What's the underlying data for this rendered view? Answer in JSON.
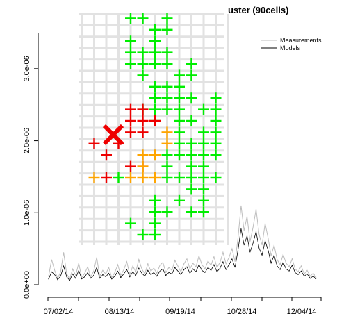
{
  "chart_data": {
    "type": "line",
    "title": "uster (90cells)",
    "xlabel": "",
    "ylabel": "",
    "x_tick_labels": [
      "07/02/14",
      "08/13/14",
      "09/19/14",
      "10/28/14",
      "12/04/14"
    ],
    "y_tick_labels": [
      "0.0e+00",
      "1.0e-06",
      "2.0e-06",
      "3.0e-06"
    ],
    "y_ticks": [
      0,
      1e-06,
      2e-06,
      3e-06
    ],
    "ylim": [
      0,
      3.5e-06
    ],
    "legend": {
      "position": "top-right",
      "entries": [
        "Measurements",
        "Models"
      ]
    },
    "series": [
      {
        "name": "Measurements",
        "color": "#bdbdbd",
        "values": [
          1.2e-07,
          3.5e-07,
          2e-07,
          9e-08,
          1.8e-07,
          4.5e-07,
          1.5e-07,
          8e-08,
          2.2e-07,
          1.3e-07,
          3e-07,
          1e-07,
          1.6e-07,
          2.5e-07,
          1.1e-07,
          1.9e-07,
          3.8e-07,
          1.2e-07,
          2e-07,
          1.5e-07,
          2.4e-07,
          1e-07,
          1.7e-07,
          2.8e-07,
          1.3e-07,
          2.1e-07,
          3.2e-07,
          1.4e-07,
          2.6e-07,
          1.8e-07,
          3.5e-07,
          2.2e-07,
          1.5e-07,
          2.9e-07,
          1.9e-07,
          2.3e-07,
          1.6e-07,
          2.7e-07,
          3.1e-07,
          1.7e-07,
          2.4e-07,
          2e-07,
          3.4e-07,
          2.6e-07,
          1.8e-07,
          2.9e-07,
          3.6e-07,
          2.2e-07,
          3e-07,
          2.5e-07,
          4e-07,
          2.8e-07,
          2.2e-07,
          3.3e-07,
          2.7e-07,
          3.9e-07,
          2.4e-07,
          3.1e-07,
          4.5e-07,
          2.9e-07,
          3.8e-07,
          5e-07,
          3.2e-07,
          6.5e-07,
          1.1e-06,
          7.5e-07,
          9.5e-07,
          6e-07,
          8e-07,
          1.05e-06,
          7e-07,
          5.5e-07,
          8.5e-07,
          6.5e-07,
          4e-07,
          5.5e-07,
          3.5e-07,
          2.8e-07,
          4.2e-07,
          3e-07,
          2.5e-07,
          3.6e-07,
          2.2e-07,
          1.8e-07,
          2.6e-07,
          1.5e-07,
          2e-07,
          1.2e-07,
          1.6e-07,
          1e-07
        ]
      },
      {
        "name": "Models",
        "color": "#000000",
        "values": [
          8e-08,
          1.8e-07,
          1.4e-07,
          7e-08,
          1.2e-07,
          2.6e-07,
          1.1e-07,
          6e-08,
          1.5e-07,
          9e-08,
          2e-07,
          8e-08,
          1.1e-07,
          1.7e-07,
          9e-08,
          1.3e-07,
          2.4e-07,
          9e-08,
          1.4e-07,
          1.1e-07,
          1.6e-07,
          8e-08,
          1.2e-07,
          1.9e-07,
          1e-07,
          1.5e-07,
          2.1e-07,
          1.1e-07,
          1.8e-07,
          1.3e-07,
          2.3e-07,
          1.6e-07,
          1.2e-07,
          2e-07,
          1.4e-07,
          1.7e-07,
          1.2e-07,
          1.9e-07,
          2.2e-07,
          1.3e-07,
          1.7e-07,
          1.5e-07,
          2.4e-07,
          1.9e-07,
          1.4e-07,
          2.1e-07,
          2.5e-07,
          1.6e-07,
          2.2e-07,
          1.8e-07,
          2.8e-07,
          2e-07,
          1.7e-07,
          2.4e-07,
          2e-07,
          2.8e-07,
          1.8e-07,
          2.3e-07,
          3.2e-07,
          2.1e-07,
          2.8e-07,
          3.6e-07,
          2.4e-07,
          4.8e-07,
          7.8e-07,
          5.5e-07,
          6.8e-07,
          4.5e-07,
          5.8e-07,
          7.4e-07,
          5.1e-07,
          4.1e-07,
          6.1e-07,
          4.8e-07,
          3e-07,
          4.1e-07,
          2.6e-07,
          2.1e-07,
          3.1e-07,
          2.2e-07,
          1.9e-07,
          2.7e-07,
          1.7e-07,
          1.4e-07,
          1.9e-07,
          1.2e-07,
          1.5e-07,
          9e-08,
          1.2e-07,
          8e-08
        ]
      }
    ]
  },
  "inset_map": {
    "grid_cols": 12,
    "grid_rows": 20,
    "marker_colors": {
      "green": "#00ee00",
      "orange": "#ffa500",
      "red": "#ee0000",
      "selected": "#ee0000",
      "grid": "#e2e2e2"
    },
    "selected_cell": [
      2,
      10
    ],
    "cells": [
      [
        "green",
        4,
        1
      ],
      [
        "green",
        5,
        1
      ],
      [
        "green",
        7,
        1
      ],
      [
        "green",
        6,
        2
      ],
      [
        "green",
        7,
        2
      ],
      [
        "green",
        4,
        3
      ],
      [
        "green",
        6,
        3
      ],
      [
        "green",
        4,
        4
      ],
      [
        "green",
        5,
        4
      ],
      [
        "green",
        6,
        4
      ],
      [
        "green",
        7,
        4
      ],
      [
        "green",
        4,
        5
      ],
      [
        "green",
        5,
        5
      ],
      [
        "green",
        6,
        5
      ],
      [
        "green",
        7,
        5
      ],
      [
        "green",
        9,
        5
      ],
      [
        "green",
        5,
        6
      ],
      [
        "green",
        8,
        6
      ],
      [
        "green",
        9,
        6
      ],
      [
        "green",
        6,
        7
      ],
      [
        "green",
        7,
        7
      ],
      [
        "green",
        8,
        7
      ],
      [
        "green",
        6,
        8
      ],
      [
        "green",
        7,
        8
      ],
      [
        "green",
        8,
        8
      ],
      [
        "green",
        9,
        8
      ],
      [
        "green",
        11,
        8
      ],
      [
        "green",
        5,
        9
      ],
      [
        "green",
        6,
        9
      ],
      [
        "green",
        7,
        9
      ],
      [
        "green",
        8,
        9
      ],
      [
        "green",
        10,
        9
      ],
      [
        "green",
        11,
        9
      ],
      [
        "green",
        6,
        10
      ],
      [
        "green",
        8,
        10
      ],
      [
        "green",
        9,
        10
      ],
      [
        "green",
        11,
        10
      ],
      [
        "green",
        8,
        11
      ],
      [
        "green",
        10,
        11
      ],
      [
        "green",
        11,
        11
      ],
      [
        "green",
        8,
        12
      ],
      [
        "green",
        9,
        12
      ],
      [
        "green",
        10,
        12
      ],
      [
        "green",
        11,
        12
      ],
      [
        "green",
        7,
        13
      ],
      [
        "green",
        8,
        13
      ],
      [
        "green",
        9,
        13
      ],
      [
        "green",
        10,
        13
      ],
      [
        "green",
        11,
        13
      ],
      [
        "green",
        7,
        14
      ],
      [
        "green",
        9,
        14
      ],
      [
        "green",
        10,
        14
      ],
      [
        "green",
        3,
        15
      ],
      [
        "green",
        7,
        15
      ],
      [
        "green",
        8,
        15
      ],
      [
        "green",
        9,
        15
      ],
      [
        "green",
        10,
        15
      ],
      [
        "green",
        11,
        15
      ],
      [
        "green",
        9,
        16
      ],
      [
        "green",
        10,
        16
      ],
      [
        "green",
        6,
        17
      ],
      [
        "green",
        8,
        17
      ],
      [
        "green",
        10,
        17
      ],
      [
        "green",
        6,
        18
      ],
      [
        "green",
        7,
        18
      ],
      [
        "green",
        9,
        18
      ],
      [
        "green",
        10,
        18
      ],
      [
        "green",
        4,
        19
      ],
      [
        "green",
        6,
        19
      ],
      [
        "green",
        5,
        20
      ],
      [
        "green",
        6,
        20
      ],
      [
        "red",
        4,
        9
      ],
      [
        "red",
        5,
        9
      ],
      [
        "red",
        4,
        10
      ],
      [
        "red",
        5,
        10
      ],
      [
        "red",
        6,
        10
      ],
      [
        "red",
        4,
        11
      ],
      [
        "red",
        5,
        11
      ],
      [
        "red",
        1,
        12
      ],
      [
        "red",
        3,
        12
      ],
      [
        "red",
        2,
        13
      ],
      [
        "red",
        4,
        14
      ],
      [
        "red",
        5,
        14
      ],
      [
        "red",
        2,
        15
      ],
      [
        "orange",
        7,
        11
      ],
      [
        "orange",
        7,
        12
      ],
      [
        "orange",
        5,
        13
      ],
      [
        "orange",
        6,
        13
      ],
      [
        "orange",
        5,
        14
      ],
      [
        "orange",
        1,
        15
      ],
      [
        "orange",
        4,
        15
      ],
      [
        "orange",
        5,
        15
      ],
      [
        "orange",
        6,
        15
      ]
    ]
  }
}
